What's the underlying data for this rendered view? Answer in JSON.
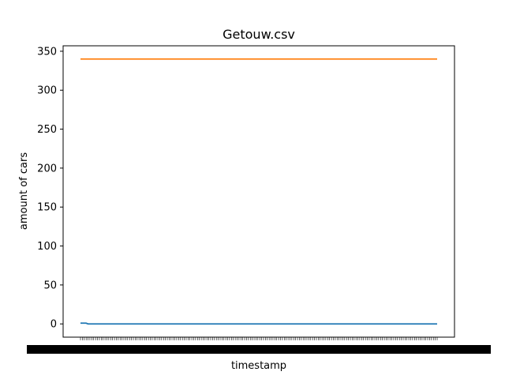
{
  "chart_data": {
    "type": "line",
    "title": "Getouw.csv",
    "xlabel": "timestamp",
    "ylabel": "amount of cars",
    "ylim": [
      -17,
      357
    ],
    "y_ticks": [
      0,
      50,
      100,
      150,
      200,
      250,
      300,
      350
    ],
    "x_count": 190,
    "series": [
      {
        "values_description": "first points about 1, then 0",
        "color": "#1f77b4",
        "start_values": [
          1,
          1,
          1,
          1
        ],
        "rest_value": 0
      },
      {
        "color": "#ff7f0e",
        "constant_value": 340
      }
    ],
    "x_tick_labels_overlapping": true,
    "grid": false,
    "legend": "none"
  }
}
